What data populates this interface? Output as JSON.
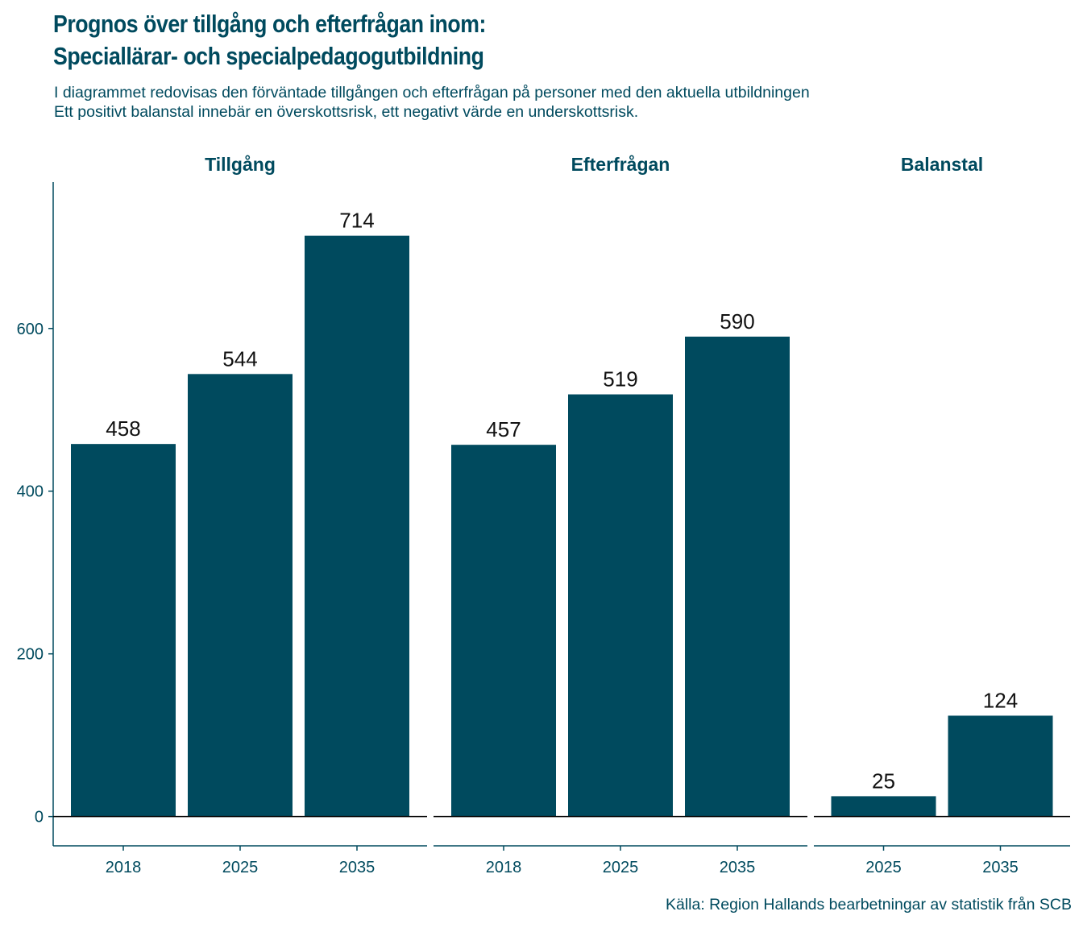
{
  "title_line1": "Prognos över tillgång och efterfrågan inom:",
  "title_line2": "Speciallärar- och specialpedagogutbildning",
  "subtitle_line1": "I diagrammet redovisas den förväntade tillgången och efterfrågan på personer med den aktuella utbildningen",
  "subtitle_line2": "Ett positivt balanstal innebär en överskottsrisk, ett negativt värde en underskottsrisk.",
  "caption": "Källa: Region Hallands bearbetningar av statistik från SCB",
  "colors": {
    "bar": "#004a5e",
    "text": "#004a5e",
    "label": "#111111"
  },
  "chart_data": {
    "type": "bar",
    "ylim": [
      -36,
      780
    ],
    "yticks": [
      0,
      200,
      400,
      600
    ],
    "grid": false,
    "facets": [
      {
        "name": "Tillgång",
        "categories": [
          "2018",
          "2025",
          "2035"
        ],
        "values": [
          458,
          544,
          714
        ]
      },
      {
        "name": "Efterfrågan",
        "categories": [
          "2018",
          "2025",
          "2035"
        ],
        "values": [
          457,
          519,
          590
        ]
      },
      {
        "name": "Balanstal",
        "categories": [
          "2025",
          "2035"
        ],
        "values": [
          25,
          124
        ]
      }
    ]
  }
}
